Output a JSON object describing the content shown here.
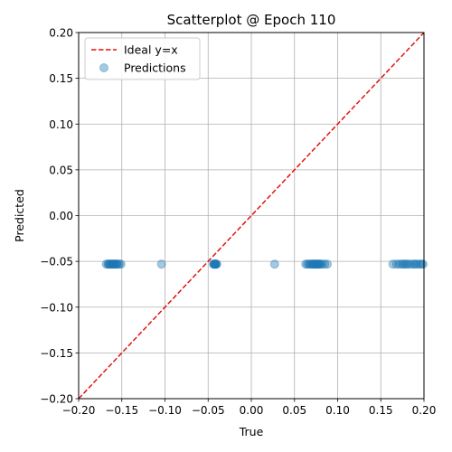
{
  "chart_data": {
    "type": "scatter",
    "title": "Scatterplot @ Epoch 110",
    "xlabel": "True",
    "ylabel": "Predicted",
    "xlim": [
      -0.2,
      0.2
    ],
    "ylim": [
      -0.2,
      0.2
    ],
    "x_ticks": [
      -0.2,
      -0.15,
      -0.1,
      -0.05,
      0.0,
      0.05,
      0.1,
      0.15,
      0.2
    ],
    "y_ticks": [
      -0.2,
      -0.15,
      -0.1,
      -0.05,
      0.0,
      0.05,
      0.1,
      0.15,
      0.2
    ],
    "x_tick_labels": [
      "−0.20",
      "−0.15",
      "−0.10",
      "−0.05",
      "0.00",
      "0.05",
      "0.10",
      "0.15",
      "0.20"
    ],
    "y_tick_labels": [
      "−0.20",
      "−0.15",
      "−0.10",
      "−0.05",
      "0.00",
      "0.05",
      "0.10",
      "0.15",
      "0.20"
    ],
    "grid": true,
    "legend_position": "top-left",
    "series": [
      {
        "name": "Ideal y=x",
        "kind": "line",
        "style": "dashed",
        "color": "#e3120b",
        "x": [
          -0.2,
          0.2
        ],
        "y": [
          -0.2,
          0.2
        ]
      },
      {
        "name": "Predictions",
        "kind": "scatter",
        "color": "#1f77b4",
        "alpha": 0.4,
        "x": [
          -0.168,
          -0.166,
          -0.165,
          -0.164,
          -0.163,
          -0.162,
          -0.161,
          -0.16,
          -0.159,
          -0.158,
          -0.157,
          -0.156,
          -0.155,
          -0.153,
          -0.151,
          -0.104,
          -0.044,
          -0.043,
          -0.043,
          -0.042,
          -0.042,
          -0.041,
          -0.041,
          -0.04,
          0.027,
          0.063,
          0.065,
          0.067,
          0.068,
          0.07,
          0.071,
          0.072,
          0.073,
          0.074,
          0.075,
          0.076,
          0.077,
          0.078,
          0.079,
          0.08,
          0.082,
          0.085,
          0.088,
          0.164,
          0.168,
          0.171,
          0.174,
          0.176,
          0.178,
          0.18,
          0.182,
          0.185,
          0.188,
          0.19,
          0.192,
          0.195,
          0.197,
          0.199
        ],
        "y": [
          -0.053,
          -0.053,
          -0.053,
          -0.053,
          -0.053,
          -0.053,
          -0.053,
          -0.053,
          -0.053,
          -0.053,
          -0.053,
          -0.053,
          -0.053,
          -0.053,
          -0.053,
          -0.053,
          -0.053,
          -0.053,
          -0.053,
          -0.053,
          -0.053,
          -0.053,
          -0.053,
          -0.053,
          -0.053,
          -0.053,
          -0.053,
          -0.053,
          -0.053,
          -0.053,
          -0.053,
          -0.053,
          -0.053,
          -0.053,
          -0.053,
          -0.053,
          -0.053,
          -0.053,
          -0.053,
          -0.053,
          -0.053,
          -0.053,
          -0.053,
          -0.053,
          -0.053,
          -0.053,
          -0.053,
          -0.053,
          -0.053,
          -0.053,
          -0.053,
          -0.053,
          -0.053,
          -0.053,
          -0.053,
          -0.053,
          -0.053,
          -0.053
        ]
      }
    ]
  }
}
